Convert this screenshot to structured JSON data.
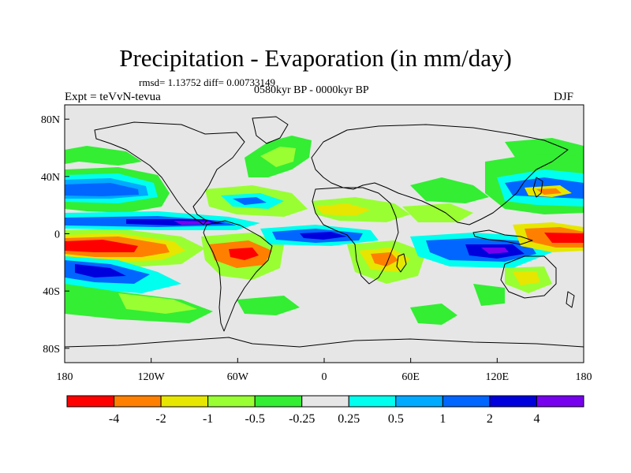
{
  "header": {
    "title": "Precipitation - Evaporation (in mm/day)",
    "stats": "rmsd= 1.13752 diff= 0.00733149",
    "period": "0580kyr BP - 0000kyr BP",
    "experiment": "Expt = teVvN-tevua",
    "season": "DJF"
  },
  "map": {
    "background_color": "#e6e6e6",
    "x_ticks": [
      "180",
      "120W",
      "60W",
      "0",
      "60E",
      "120E",
      "180"
    ],
    "y_ticks": [
      "80N",
      "40N",
      "0",
      "40S",
      "80S"
    ]
  },
  "colorbar": {
    "colors": [
      "#ff0000",
      "#ff8000",
      "#e6e600",
      "#99ff33",
      "#33ee33",
      "#e6e6e6",
      "#00ffee",
      "#00aaff",
      "#0066ff",
      "#0000dd",
      "#7700ee"
    ],
    "labels": [
      "-4",
      "-2",
      "-1",
      "-0.5",
      "-0.25",
      "0.25",
      "0.5",
      "1",
      "2",
      "4"
    ]
  }
}
